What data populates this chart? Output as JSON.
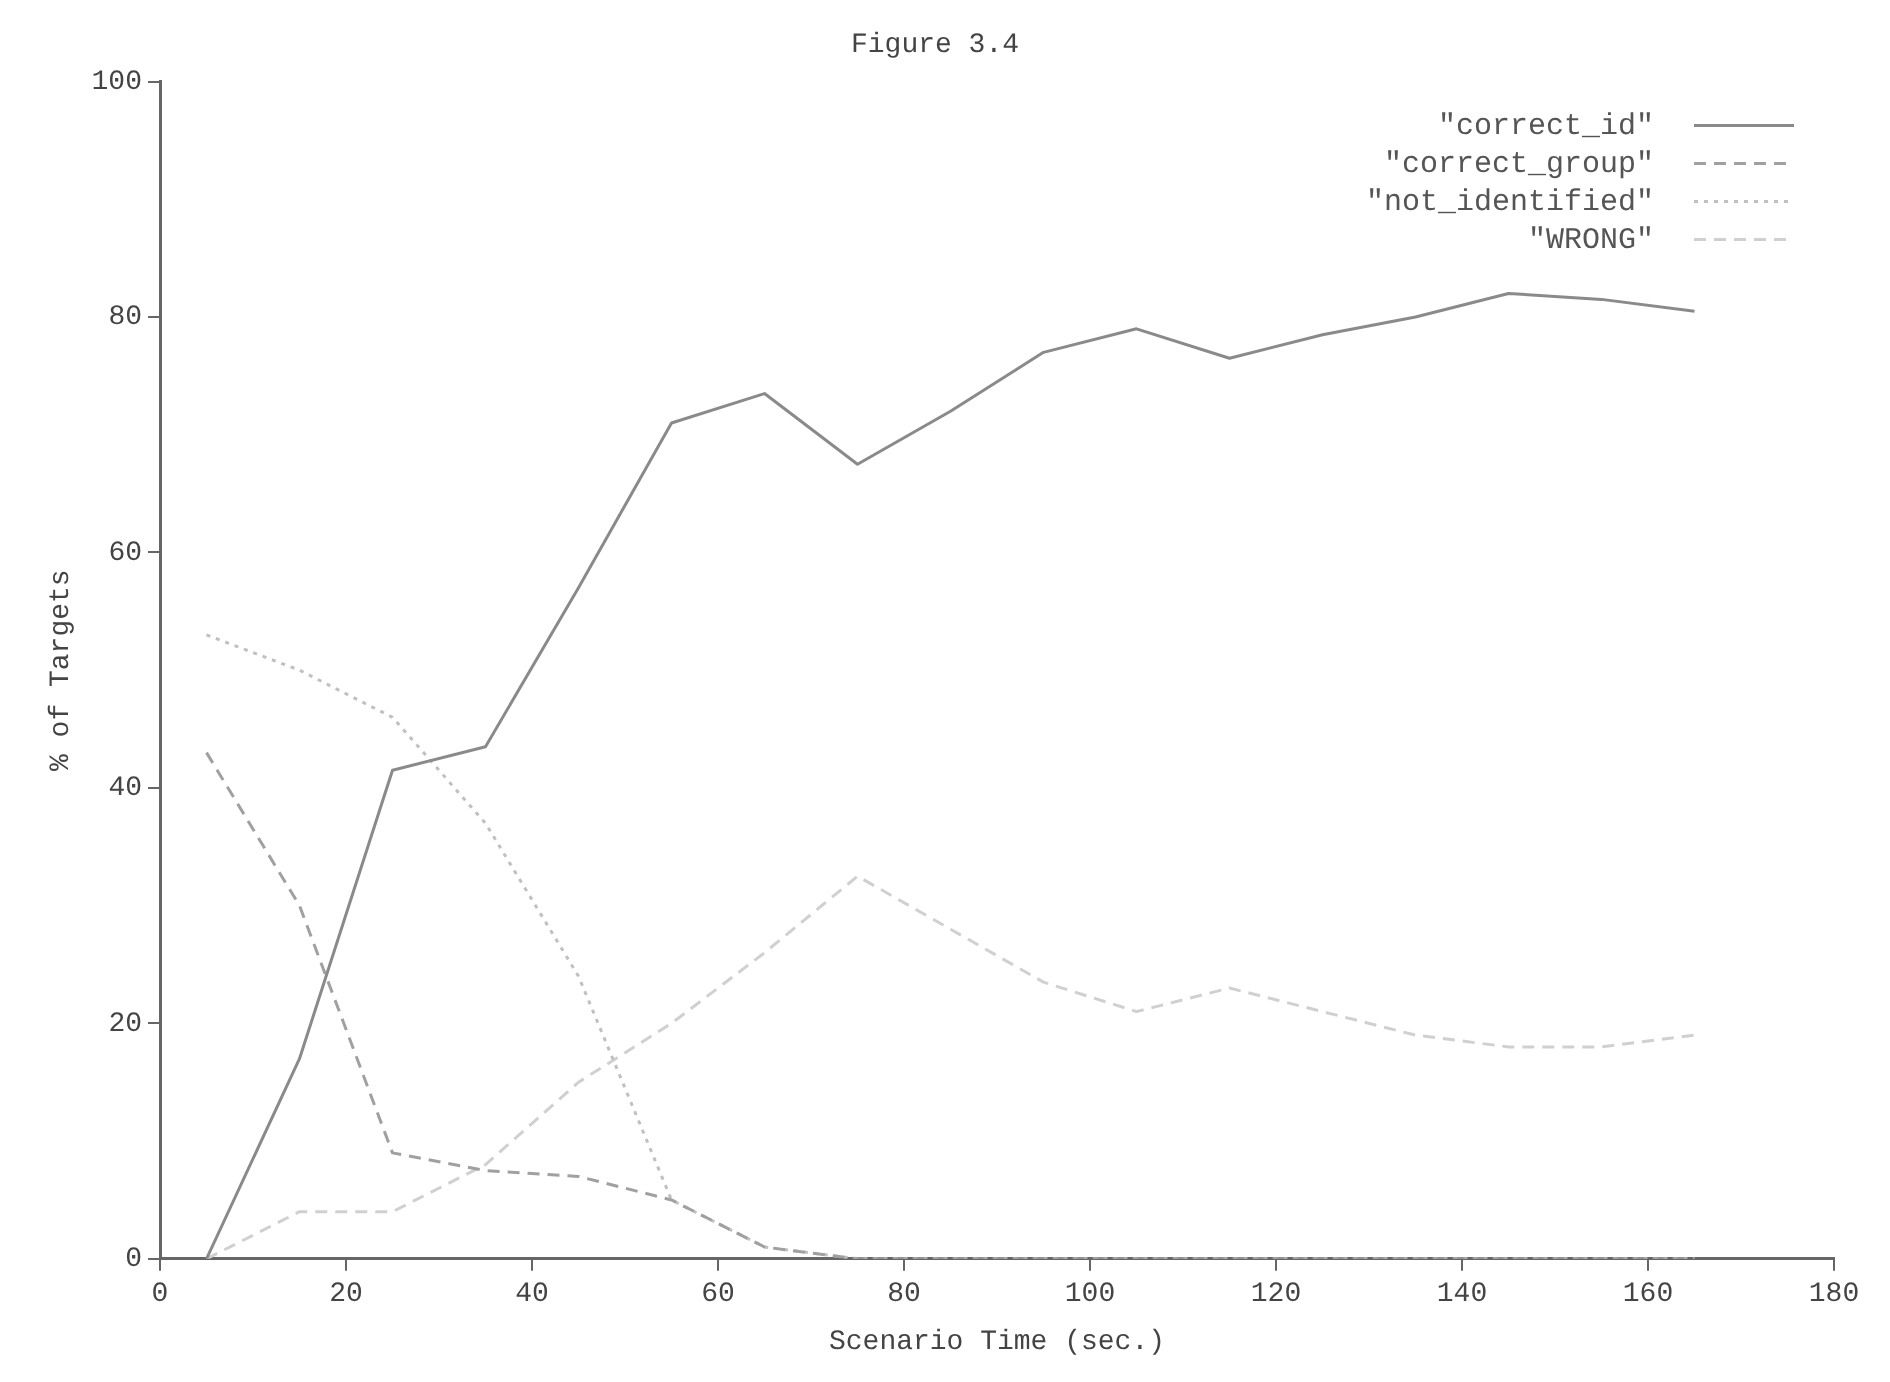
{
  "chart_data": {
    "type": "line",
    "title": "Figure 3.4",
    "xlabel": "Scenario Time (sec.)",
    "ylabel": "% of Targets",
    "x": [
      5,
      15,
      25,
      35,
      45,
      55,
      65,
      75,
      85,
      95,
      105,
      115,
      125,
      135,
      145,
      155,
      165
    ],
    "series": [
      {
        "name": "\"correct_id\"",
        "color": "#8a8a8a",
        "line_style": "solid",
        "values": [
          0,
          17,
          41.5,
          43.5,
          57,
          71,
          73.5,
          67.5,
          72,
          77,
          79,
          76.5,
          78.5,
          80,
          82,
          81.5,
          80.5
        ]
      },
      {
        "name": "\"correct_group\"",
        "color": "#a0a0a0",
        "line_style": "dashed",
        "values": [
          43,
          30,
          9,
          7.5,
          7,
          5,
          1,
          0,
          0,
          0,
          0,
          0,
          0,
          0,
          0,
          0,
          0
        ]
      },
      {
        "name": "\"not_identified\"",
        "color": "#c0c0c0",
        "line_style": "dotted",
        "values": [
          53,
          50,
          46,
          37,
          24,
          5,
          1,
          0,
          0,
          0,
          0,
          0,
          0,
          0,
          0,
          0,
          0
        ]
      },
      {
        "name": "\"WRONG\"",
        "color": "#d0d0d0",
        "line_style": "dashed",
        "values": [
          0,
          4,
          4,
          8,
          15,
          20,
          26,
          32.5,
          28,
          23.5,
          21,
          23,
          21,
          19,
          18,
          18,
          19
        ]
      }
    ],
    "xlim": [
      0,
      180
    ],
    "xticks": [
      0,
      20,
      40,
      60,
      80,
      100,
      120,
      140,
      160,
      180
    ],
    "ylim": [
      0,
      100
    ],
    "yticks": [
      0,
      20,
      40,
      60,
      80,
      100
    ],
    "grid": false,
    "legend": "top right",
    "marker": "none"
  }
}
